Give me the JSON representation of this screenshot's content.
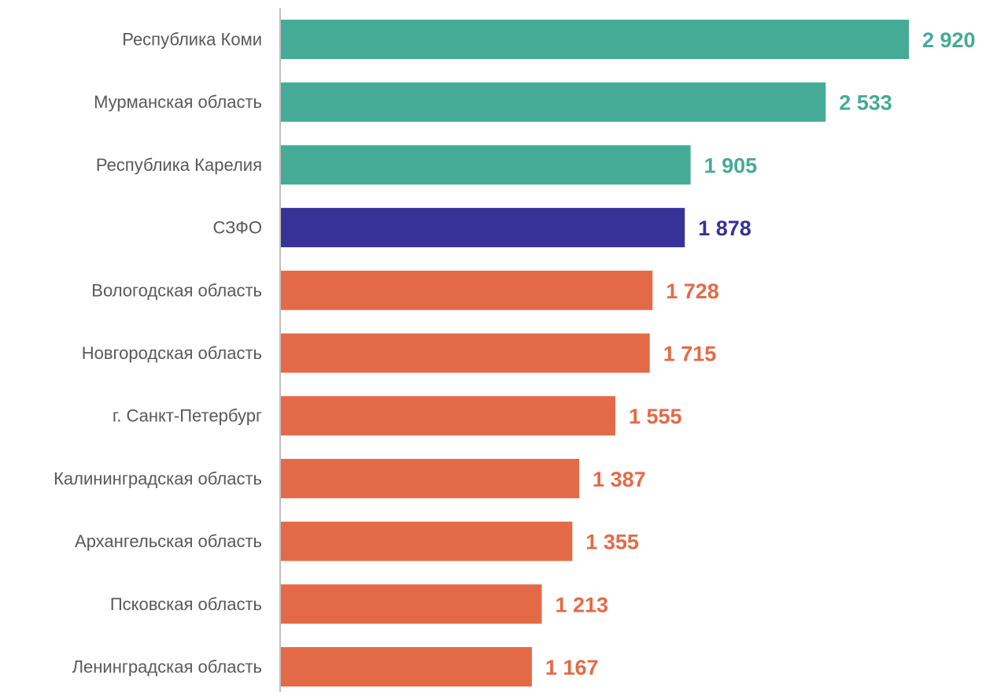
{
  "chart_data": {
    "type": "bar",
    "orientation": "horizontal",
    "title": "",
    "xlabel": "",
    "ylabel": "",
    "categories": [
      "Республика Коми",
      "Мурманская область",
      "Республика Карелия",
      "СЗФО",
      "Вологодская область",
      "Новгородская область",
      "г. Санкт-Петербург",
      "Калининградская область",
      "Архангельская область",
      "Псковская область",
      "Ленинградская область"
    ],
    "values": [
      2920,
      2533,
      1905,
      1878,
      1728,
      1715,
      1555,
      1387,
      1355,
      1213,
      1167
    ],
    "value_labels": [
      "2 920",
      "2 533",
      "1 905",
      "1 878",
      "1 728",
      "1 715",
      "1 555",
      "1 387",
      "1 355",
      "1 213",
      "1 167"
    ],
    "groups": [
      "above",
      "above",
      "above",
      "federal",
      "below",
      "below",
      "below",
      "below",
      "below",
      "below",
      "below"
    ],
    "colors": {
      "above": "#45ab96",
      "federal": "#373297",
      "below": "#e46a47",
      "axis": "#bfbfbf"
    },
    "xlim": [
      0,
      2920
    ],
    "grid": false,
    "legend": "none"
  }
}
